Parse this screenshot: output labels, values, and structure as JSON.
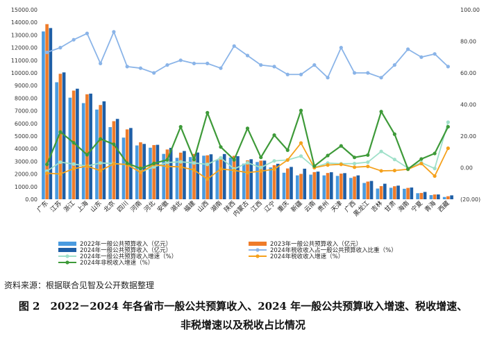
{
  "chart_data": {
    "type": "bar",
    "title": "",
    "xlabel": "",
    "ylabel": "",
    "ylim": [
      0,
      15000
    ],
    "y_ticks": [
      "0.00",
      "1000.00",
      "2000.00",
      "3000.00",
      "4000.00",
      "5000.00",
      "6000.00",
      "7000.00",
      "8000.00",
      "9000.00",
      "10000.00",
      "11000.00",
      "12000.00",
      "13000.00",
      "14000.00",
      "15000.00"
    ],
    "y2lim": [
      -20,
      100
    ],
    "y2_ticks": [
      "(20.00)",
      "0.00",
      "20.00",
      "40.00",
      "60.00",
      "80.00",
      "100.00"
    ],
    "grid": false,
    "legend_position": "bottom",
    "categories": [
      "广东",
      "江苏",
      "浙江",
      "上海",
      "山东",
      "北京",
      "四川",
      "河南",
      "河北",
      "安徽",
      "湖北",
      "福建",
      "山西",
      "湖南",
      "陕西",
      "内蒙古",
      "江西",
      "辽宁",
      "重庆",
      "新疆",
      "云南",
      "贵州",
      "天津",
      "广西",
      "黑龙江",
      "吉林",
      "甘肃",
      "海南",
      "宁夏",
      "青海",
      "西藏"
    ],
    "series": [
      {
        "name": "2022年一般公共预算收入（亿元）",
        "type": "bar",
        "axis": "left",
        "color": "#4a9be0",
        "values": [
          13280,
          9260,
          8040,
          7610,
          7100,
          5710,
          4880,
          4260,
          4080,
          3590,
          3280,
          3340,
          3450,
          3100,
          3300,
          2820,
          2950,
          2520,
          2100,
          1890,
          1950,
          1890,
          1850,
          1690,
          1290,
          850,
          910,
          830,
          480,
          330,
          180
        ]
      },
      {
        "name": "2023年一般公共预算收入（亿元）",
        "type": "bar",
        "axis": "left",
        "color": "#ef7c2a",
        "values": [
          13860,
          9930,
          8600,
          8310,
          7460,
          6180,
          5530,
          4510,
          4290,
          3940,
          3690,
          3590,
          3480,
          3360,
          3440,
          3080,
          3060,
          2700,
          2440,
          2010,
          2150,
          2080,
          2030,
          1800,
          1400,
          1040,
          1030,
          900,
          500,
          380,
          240
        ]
      },
      {
        "name": "2024年一般公共预算收入（亿元）",
        "type": "bar",
        "axis": "left",
        "color": "#1f5fa6",
        "values": [
          13550,
          10040,
          8750,
          8360,
          7750,
          6360,
          5640,
          4380,
          4310,
          4070,
          3820,
          3700,
          3560,
          3580,
          3410,
          3170,
          3060,
          2810,
          2560,
          2420,
          2190,
          2140,
          2070,
          1890,
          1450,
          1230,
          1080,
          930,
          580,
          380,
          310
        ]
      },
      {
        "name": "2024年税收收入占一般公共预算收入比重（%）",
        "type": "line",
        "axis": "right",
        "color": "#8ab4e8",
        "values": [
          73,
          76,
          81,
          85,
          66,
          86,
          64,
          63,
          60,
          65,
          68,
          66,
          66,
          63,
          77,
          71,
          65,
          64,
          59,
          59,
          65,
          57,
          76,
          60,
          60,
          57,
          65,
          75,
          70,
          72,
          64
        ]
      },
      {
        "name": "2024年一般公共预算收入增速（%）",
        "type": "line",
        "axis": "right",
        "color": "#9fe0c9",
        "values": [
          -2.2,
          3.5,
          2.3,
          1.0,
          3.0,
          2.6,
          2.0,
          -2.8,
          0.5,
          3.3,
          3.7,
          3.0,
          2.1,
          6.2,
          -0.8,
          3.1,
          0.1,
          4.3,
          4.9,
          7.3,
          0.2,
          2.9,
          2.5,
          2.6,
          3.5,
          10.3,
          5.2,
          -0.3,
          3.2,
          -0.5,
          28.8
        ]
      },
      {
        "name": "2024年税收收入增速（%）",
        "type": "line",
        "axis": "right",
        "color": "#f5a11c",
        "values": [
          -3.5,
          -4.0,
          -0.6,
          1.0,
          -1.9,
          2.5,
          2.0,
          -3.0,
          2.0,
          0.8,
          0.5,
          -1.5,
          -7.2,
          -0.8,
          -1.7,
          -3.1,
          -2.2,
          -1.0,
          4.9,
          15.6,
          0.0,
          1.7,
          2.1,
          0.3,
          0.8,
          -2.0,
          -1.8,
          -1.0,
          2.6,
          -5.3,
          12.3
        ]
      },
      {
        "name": "2024年非税收入增速（%）",
        "type": "line",
        "axis": "right",
        "color": "#3e9a39",
        "values": [
          2.1,
          22.6,
          15.8,
          8.2,
          18.2,
          14.8,
          2.8,
          -0.5,
          2.7,
          5.0,
          25.9,
          5.2,
          34.8,
          13.1,
          5.0,
          24.9,
          6.5,
          20.6,
          11.1,
          36.2,
          1.0,
          7.7,
          13.8,
          6.5,
          8.0,
          35.5,
          21.2,
          -0.9,
          5.5,
          9.0,
          25.9
        ]
      }
    ]
  },
  "source_note": "资料来源：根据联合见智及公开数据整理",
  "caption_line1": "图 2　2022－2024 年各省市一般公共预算收入、2024 年一般公共预算收入增速、税收增速、",
  "caption_line2": "非税增速以及税收占比情况"
}
